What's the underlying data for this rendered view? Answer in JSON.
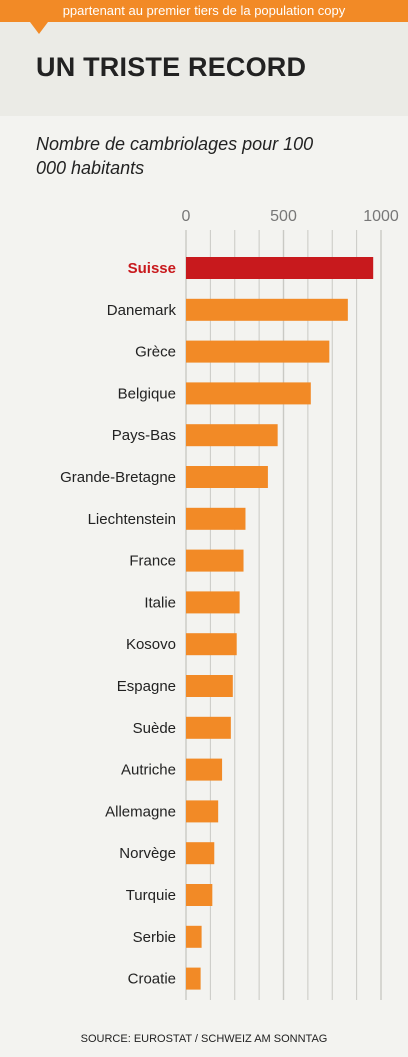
{
  "header": {
    "stripe_text": "ppartenant au premier tiers de la population copy",
    "title": "UN TRISTE RECORD"
  },
  "colors": {
    "highlight": "#c8191d",
    "bar": "#f28a26",
    "grid": "#c9c9c4"
  },
  "chart_data": {
    "type": "bar",
    "orientation": "horizontal",
    "title": "UN TRISTE RECORD",
    "subtitle": "Nombre de cambriolages pour 100 000 habitants",
    "source": "SOURCE: EUROSTAT / SCHWEIZ AM SONNTAG",
    "highlight_category": "Suisse",
    "categories": [
      "Suisse",
      "Danemark",
      "Grèce",
      "Belgique",
      "Pays-Bas",
      "Grande-Bretagne",
      "Liechtenstein",
      "France",
      "Italie",
      "Kosovo",
      "Espagne",
      "Suède",
      "Autriche",
      "Allemagne",
      "Norvège",
      "Turquie",
      "Serbie",
      "Croatie"
    ],
    "values": [
      960,
      830,
      735,
      640,
      470,
      420,
      305,
      295,
      275,
      260,
      240,
      230,
      185,
      165,
      145,
      135,
      80,
      75
    ],
    "xlim": [
      0,
      1050
    ],
    "ticks": [
      0,
      500,
      1000
    ],
    "tick_labels": [
      "0",
      "500",
      "1000"
    ],
    "minor_grid_step": 125,
    "grid": true
  }
}
